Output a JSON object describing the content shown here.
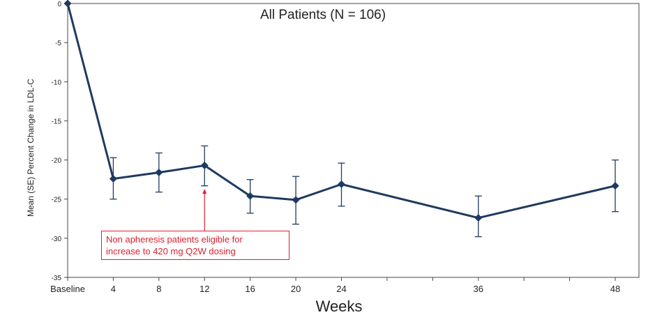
{
  "chart_data": {
    "type": "line",
    "title": "All Patients (N = 106)",
    "xlabel": "Weeks",
    "ylabel": "Mean (SE) Percent Change in LDL-C",
    "x_tick_labels": [
      "Baseline",
      "4",
      "8",
      "12",
      "16",
      "20",
      "24",
      "36",
      "48"
    ],
    "y_ticks": [
      0,
      -5,
      -10,
      -15,
      -20,
      -25,
      -30,
      -35
    ],
    "ylim": [
      -35,
      0
    ],
    "xlim": [
      0,
      48
    ],
    "grid": false,
    "series": [
      {
        "x": [
          0,
          4,
          8,
          12,
          16,
          20,
          24,
          36,
          48
        ],
        "values": [
          0,
          -22.4,
          -21.6,
          -20.7,
          -24.6,
          -25.1,
          -23.1,
          -27.4,
          -23.3
        ],
        "se_upper": [
          0,
          -19.7,
          -19.1,
          -18.2,
          -22.5,
          -22.1,
          -20.4,
          -24.6,
          -20.0
        ],
        "se_lower": [
          0,
          -25.0,
          -24.1,
          -23.3,
          -26.8,
          -28.2,
          -25.9,
          -29.8,
          -26.6
        ],
        "color": "#1f3a5f"
      }
    ],
    "annotations": [
      {
        "x": 12,
        "lines": [
          "Non apheresis patients eligible for",
          "increase to 420 mg Q2W dosing"
        ],
        "color": "#e0202e"
      }
    ]
  }
}
